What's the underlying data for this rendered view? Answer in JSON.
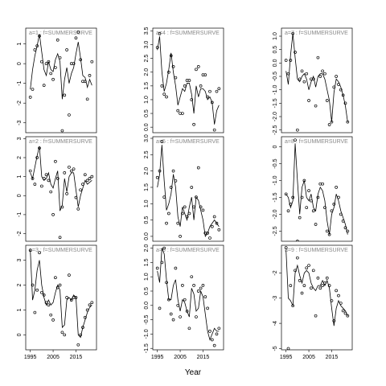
{
  "xlabel": "Year",
  "chart_data": [
    {
      "type": "line",
      "title": "a=1 : f=SUMMERSURVE",
      "xlim": [
        1993,
        2024
      ],
      "ylim": [
        -3.5,
        1.8
      ],
      "yticks": [
        1,
        0,
        -1,
        -2,
        -3
      ],
      "x": [
        1995,
        1996,
        1997,
        1998,
        1999,
        2000,
        2001,
        2002,
        2003,
        2004,
        2005,
        2006,
        2007,
        2008,
        2009,
        2010,
        2011,
        2012,
        2013,
        2014,
        2015,
        2016,
        2017,
        2018,
        2019,
        2020,
        2021,
        2022
      ],
      "series": [
        {
          "style": "points",
          "color": "#000000",
          "values": [
            -1.7,
            -1.3,
            0.7,
            0.9,
            1.4,
            0.1,
            -1.1,
            0.0,
            0.1,
            -0.5,
            -0.8,
            -0.2,
            1.2,
            0.3,
            -3.4,
            -1.6,
            0.7,
            -2.6,
            0.0,
            0.0,
            1.3,
            1.6,
            0.2,
            -0.9,
            -0.9,
            -1.8,
            -0.6,
            0.1
          ]
        },
        {
          "style": "line",
          "color": "#000000",
          "values": [
            -1.3,
            -0.3,
            0.4,
            0.9,
            1.5,
            0.6,
            -0.3,
            -0.6,
            0.1,
            -0.3,
            -0.4,
            0.2,
            0.5,
            0.1,
            -1.8,
            -0.8,
            -0.2,
            -1.0,
            -0.5,
            -0.2,
            0.5,
            1.1,
            0.3,
            -0.6,
            -0.7,
            -1.2,
            -0.8,
            -1.1
          ]
        }
      ]
    },
    {
      "type": "line",
      "title": "a=2 : f=SUMMERSURVE",
      "xlim": [
        1993,
        2024
      ],
      "ylim": [
        -2.4,
        3.1
      ],
      "yticks": [
        3,
        2,
        1,
        0,
        -1,
        -2
      ],
      "x": [
        1995,
        1996,
        1997,
        1998,
        1999,
        2000,
        2001,
        2002,
        2003,
        2004,
        2005,
        2006,
        2007,
        2008,
        2009,
        2010,
        2011,
        2012,
        2013,
        2014,
        2015,
        2016,
        2017,
        2018,
        2019,
        2020,
        2021,
        2022
      ],
      "series": [
        {
          "style": "points",
          "color": "#000000",
          "values": [
            1.3,
            0.9,
            0.6,
            2.0,
            2.5,
            0.5,
            0.9,
            1.1,
            0.8,
            0.2,
            -1.0,
            1.8,
            0.9,
            -2.2,
            -0.6,
            1.2,
            0.1,
            1.5,
            1.3,
            1.4,
            -0.1,
            -0.7,
            0.3,
            0.6,
            1.1,
            0.8,
            0.9,
            1.0
          ]
        },
        {
          "style": "line",
          "color": "#000000",
          "values": [
            1.2,
            0.9,
            1.5,
            2.1,
            2.6,
            1.0,
            0.8,
            0.9,
            1.2,
            0.6,
            0.4,
            0.9,
            1.3,
            -0.8,
            -0.5,
            0.9,
            0.2,
            1.0,
            1.2,
            1.2,
            0.3,
            -0.6,
            0.0,
            0.4,
            0.8,
            0.6,
            0.7,
            0.8
          ]
        }
      ]
    },
    {
      "type": "line",
      "title": "a=3 : f=SUMMERSURVE",
      "xlim": [
        1993,
        2024
      ],
      "ylim": [
        -0.6,
        3.6
      ],
      "yticks": [
        0,
        1,
        2,
        3
      ],
      "xticks": [
        1995,
        2005,
        2015
      ],
      "x": [
        1995,
        1996,
        1997,
        1998,
        1999,
        2000,
        2001,
        2002,
        2003,
        2004,
        2005,
        2006,
        2007,
        2008,
        2009,
        2010,
        2011,
        2012,
        2013,
        2014,
        2015,
        2016,
        2017,
        2018,
        2019,
        2020,
        2021,
        2022
      ],
      "series": [
        {
          "style": "points",
          "color": "#000000",
          "values": [
            3.4,
            2.0,
            0.9,
            1.8,
            3.3,
            1.7,
            1.6,
            1.3,
            1.2,
            0.8,
            0.6,
            2.3,
            1.9,
            2.0,
            0.1,
            0.0,
            1.5,
            2.4,
            1.4,
            1.5,
            1.5,
            -0.4,
            0.0,
            0.3,
            0.7,
            1.0,
            1.2,
            1.3
          ]
        },
        {
          "style": "line",
          "color": "#000000",
          "values": [
            3.4,
            1.4,
            1.8,
            2.6,
            3.0,
            2.0,
            1.5,
            1.2,
            1.4,
            1.2,
            1.3,
            1.7,
            2.0,
            1.8,
            0.3,
            0.4,
            1.4,
            1.5,
            1.4,
            1.6,
            1.5,
            0.0,
            -0.1,
            0.3,
            0.6,
            0.9,
            1.1,
            1.2
          ]
        }
      ]
    },
    {
      "type": "line",
      "title": "a=4 : f=SUMMERSURVE",
      "xlim": [
        1993,
        2024
      ],
      "ylim": [
        -0.2,
        3.6
      ],
      "yticks": [
        {
          "value": 0,
          "label": "0.0"
        },
        0.5,
        {
          "value": 1,
          "label": "1.0"
        },
        1.5,
        {
          "value": 2,
          "label": "2.0"
        },
        2.5,
        {
          "value": 3,
          "label": "3.0"
        },
        3.5
      ],
      "x": [
        1995,
        1996,
        1997,
        1998,
        1999,
        2000,
        2001,
        2002,
        2003,
        2004,
        2005,
        2006,
        2007,
        2008,
        2009,
        2010,
        2011,
        2012,
        2013,
        2014,
        2015,
        2016,
        2017,
        2018,
        2019,
        2020,
        2021,
        2022
      ],
      "series": [
        {
          "style": "points",
          "color": "#000000",
          "values": [
            2.9,
            3.4,
            1.5,
            1.2,
            1.1,
            2.0,
            2.6,
            2.2,
            1.8,
            0.6,
            0.5,
            0.5,
            1.5,
            1.7,
            1.7,
            1.0,
            0.1,
            2.1,
            2.2,
            1.5,
            1.9,
            1.9,
            1.1,
            1.3,
            0.9,
            -0.1,
            1.3,
            1.4
          ]
        },
        {
          "style": "line",
          "color": "#000000",
          "values": [
            2.8,
            3.3,
            2.0,
            1.3,
            1.6,
            2.1,
            2.7,
            2.0,
            1.5,
            0.8,
            1.1,
            1.4,
            1.3,
            1.6,
            1.6,
            1.2,
            0.5,
            1.5,
            1.1,
            1.4,
            1.4,
            1.3,
            1.0,
            1.1,
            0.9,
            0.1,
            0.6,
            0.8
          ]
        }
      ]
    },
    {
      "type": "line",
      "title": "a=5 : f=SUMMERSURVE",
      "xlim": [
        1993,
        2024
      ],
      "ylim": [
        -0.15,
        3.05
      ],
      "yticks": [
        {
          "value": 0,
          "label": "0.0"
        },
        0.5,
        {
          "value": 1,
          "label": "1.0"
        },
        1.5,
        {
          "value": 2,
          "label": "2.0"
        },
        2.5,
        {
          "value": 3,
          "label": "3.0"
        }
      ],
      "x": [
        1995,
        1996,
        1997,
        1998,
        1999,
        2000,
        2001,
        2002,
        2003,
        2004,
        2005,
        2006,
        2007,
        2008,
        2009,
        2010,
        2011,
        2012,
        2013,
        2014,
        2015,
        2016,
        2017,
        2018,
        2019,
        2020,
        2021,
        2022
      ],
      "series": [
        {
          "style": "points",
          "color": "#000000",
          "values": [
            1.8,
            2.0,
            2.9,
            1.2,
            0.4,
            0.7,
            1.5,
            2.0,
            1.7,
            0.4,
            0.0,
            0.7,
            0.9,
            0.6,
            0.7,
            1.5,
            0.9,
            1.2,
            2.1,
            0.9,
            0.8,
            0.1,
            0.1,
            -0.05,
            0.3,
            0.6,
            0.4,
            0.2
          ]
        },
        {
          "style": "line",
          "color": "#000000",
          "values": [
            1.5,
            1.9,
            2.8,
            1.7,
            0.8,
            1.0,
            1.3,
            1.9,
            1.5,
            0.6,
            0.3,
            0.9,
            0.7,
            0.5,
            0.9,
            1.2,
            0.5,
            1.2,
            1.1,
            0.8,
            0.5,
            0.0,
            0.1,
            0.3,
            0.4,
            0.5,
            0.4,
            0.3
          ]
        }
      ]
    },
    {
      "type": "line",
      "title": "a=6 : f=SUMMERSURVE",
      "xlim": [
        1993,
        2024
      ],
      "ylim": [
        -1.55,
        2.1
      ],
      "yticks": [
        {
          "value": 2,
          "label": "2.0"
        },
        1.5,
        {
          "value": 1,
          "label": "1.0"
        },
        0.5,
        {
          "value": 0,
          "label": "0.0"
        },
        -0.5,
        {
          "value": -1,
          "label": "-1.0"
        },
        -1.5
      ],
      "xticks": [
        1995,
        2005,
        2015
      ],
      "x": [
        1995,
        1996,
        1997,
        1998,
        1999,
        2000,
        2001,
        2002,
        2003,
        2004,
        2005,
        2006,
        2007,
        2008,
        2009,
        2010,
        2011,
        2012,
        2013,
        2014,
        2015,
        2016,
        2017,
        2018,
        2019,
        2020,
        2021,
        2022
      ],
      "series": [
        {
          "style": "points",
          "color": "#000000",
          "values": [
            1.3,
            -0.1,
            1.5,
            2.0,
            0.8,
            0.2,
            -0.3,
            -0.5,
            1.3,
            0.0,
            -0.4,
            0.7,
            0.2,
            -0.2,
            -0.8,
            1.0,
            0.7,
            -0.4,
            0.5,
            0.6,
            0.7,
            0.3,
            -0.1,
            -0.9,
            -1.2,
            -1.4,
            -1.0,
            -0.8
          ]
        },
        {
          "style": "line",
          "color": "#000000",
          "values": [
            1.2,
            0.8,
            2.0,
            1.8,
            0.9,
            0.2,
            0.2,
            0.7,
            0.9,
            0.2,
            -0.2,
            0.2,
            0.1,
            -0.2,
            -0.4,
            0.6,
            0.4,
            -0.2,
            -0.1,
            0.5,
            0.3,
            -0.3,
            -0.9,
            -1.2,
            -1.0,
            -0.8,
            -0.9,
            -0.9
          ]
        }
      ]
    },
    {
      "type": "line",
      "title": "a=7 : f=SUMMERSURVE",
      "xlim": [
        1993,
        2024
      ],
      "ylim": [
        -2.6,
        1.3
      ],
      "yticks": [
        {
          "value": 1,
          "label": "1.0"
        },
        0.5,
        {
          "value": 0,
          "label": "0.0"
        },
        -0.5,
        {
          "value": -1,
          "label": "-1.0"
        },
        -1.5,
        {
          "value": -2,
          "label": "-2.0"
        },
        -2.5
      ],
      "x": [
        1995,
        1996,
        1997,
        1998,
        1999,
        2000,
        2001,
        2002,
        2003,
        2004,
        2005,
        2006,
        2007,
        2008,
        2009,
        2010,
        2011,
        2012,
        2013,
        2014,
        2015,
        2016,
        2017,
        2018,
        2019,
        2020,
        2021,
        2022
      ],
      "series": [
        {
          "style": "points",
          "color": "#000000",
          "values": [
            0.1,
            -0.4,
            0.1,
            1.1,
            0.4,
            -2.5,
            -0.6,
            -0.3,
            -0.7,
            -0.4,
            -1.4,
            -0.6,
            -0.6,
            -1.6,
            0.2,
            -0.5,
            -0.3,
            -0.4,
            -1.4,
            -2.3,
            -2.2,
            -0.9,
            -0.5,
            -0.8,
            -1.0,
            -1.2,
            -1.5,
            -2.2
          ]
        },
        {
          "style": "line",
          "color": "#000000",
          "values": [
            -0.3,
            -0.8,
            0.3,
            1.1,
            0.2,
            -0.6,
            -0.7,
            -0.5,
            -0.4,
            -0.6,
            -1.0,
            -0.7,
            -0.5,
            -0.9,
            -0.5,
            -0.4,
            -0.4,
            -0.6,
            -1.0,
            -1.4,
            -2.2,
            -1.1,
            -0.6,
            -0.7,
            -0.9,
            -1.2,
            -1.6,
            -2.2
          ]
        }
      ]
    },
    {
      "type": "line",
      "title": "a=8 : f=SUMMERSURVE",
      "xlim": [
        1993,
        2024
      ],
      "ylim": [
        -2.8,
        0.3
      ],
      "yticks": [
        0,
        -0.5,
        {
          "value": -1,
          "label": "-1.0"
        },
        -1.5,
        {
          "value": -2,
          "label": "-2.0"
        },
        -2.5
      ],
      "x": [
        1995,
        1996,
        1997,
        1998,
        1999,
        2000,
        2001,
        2002,
        2003,
        2004,
        2005,
        2006,
        2007,
        2008,
        2009,
        2010,
        2011,
        2012,
        2013,
        2014,
        2015,
        2016,
        2017,
        2018,
        2019,
        2020,
        2021,
        2022
      ],
      "series": [
        {
          "style": "points",
          "color": "#000000",
          "values": [
            -1.4,
            -1.9,
            -1.7,
            -1.5,
            0.2,
            -2.8,
            -2.1,
            -1.5,
            -1.0,
            -1.8,
            -1.3,
            -1.6,
            -1.9,
            -2.3,
            -1.5,
            -1.1,
            -1.1,
            -1.8,
            -2.5,
            -2.6,
            -1.9,
            -1.7,
            -1.2,
            -1.5,
            -2.0,
            -2.2,
            -2.4,
            -2.5
          ]
        },
        {
          "style": "line",
          "color": "#000000",
          "values": [
            -1.4,
            -1.5,
            -1.8,
            -1.6,
            0.1,
            -1.0,
            -2.0,
            -1.2,
            -1.0,
            -1.5,
            -1.6,
            -1.4,
            -1.8,
            -1.9,
            -1.4,
            -1.2,
            -1.3,
            -1.6,
            -2.2,
            -2.6,
            -2.0,
            -1.8,
            -1.4,
            -1.6,
            -1.9,
            -2.1,
            -2.3,
            -2.6
          ]
        }
      ]
    },
    {
      "type": "line",
      "title": "a=9 : f=SUMMERSURVE",
      "xlim": [
        1993,
        2024
      ],
      "ylim": [
        -5.05,
        -0.9
      ],
      "yticks": [
        -2,
        -3,
        -4,
        -5
      ],
      "xticks": [
        1995,
        2005,
        2015
      ],
      "x": [
        1995,
        1996,
        1997,
        1998,
        1999,
        2000,
        2001,
        2002,
        2003,
        2004,
        2005,
        2006,
        2007,
        2008,
        2009,
        2010,
        2011,
        2012,
        2013,
        2014,
        2015,
        2016,
        2017,
        2018,
        2019,
        2020,
        2021,
        2022
      ],
      "series": [
        {
          "style": "points",
          "color": "#000000",
          "values": [
            -1.0,
            -5.0,
            -2.5,
            -3.3,
            -1.9,
            -1.4,
            -2.3,
            -2.8,
            -2.5,
            -1.8,
            -1.7,
            -2.6,
            -1.9,
            -3.7,
            -2.2,
            -2.6,
            -2.5,
            -2.4,
            -2.2,
            -2.5,
            -3.1,
            -3.9,
            -2.7,
            -2.9,
            -3.2,
            -3.5,
            -3.6,
            -3.7
          ]
        },
        {
          "style": "line",
          "color": "#000000",
          "values": [
            -1.1,
            -3.0,
            -3.1,
            -3.3,
            -2.0,
            -1.7,
            -2.1,
            -2.4,
            -2.0,
            -1.9,
            -2.0,
            -2.4,
            -2.6,
            -2.7,
            -2.5,
            -2.5,
            -2.3,
            -2.5,
            -2.3,
            -2.6,
            -3.4,
            -4.1,
            -3.4,
            -3.1,
            -3.3,
            -3.4,
            -3.5,
            -3.7
          ]
        }
      ]
    }
  ]
}
